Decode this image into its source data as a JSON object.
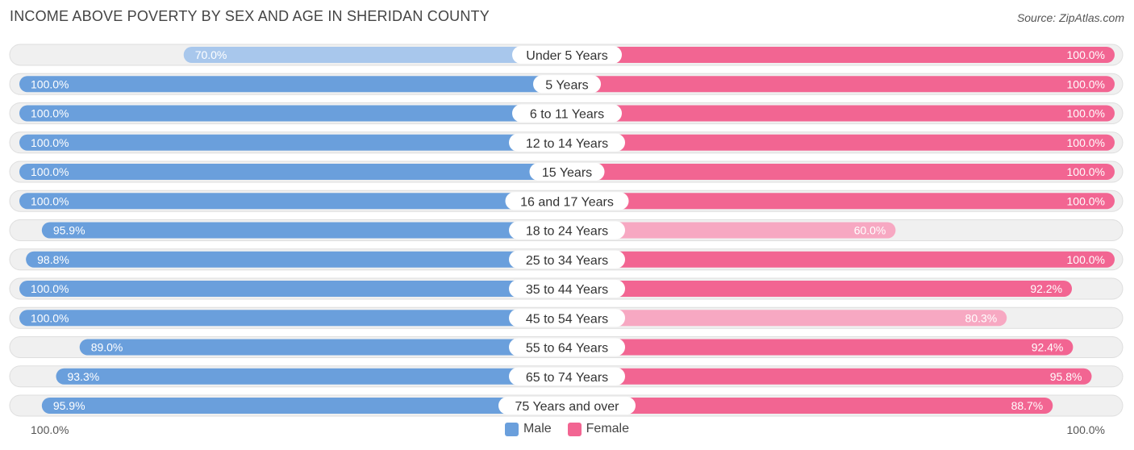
{
  "title": "INCOME ABOVE POVERTY BY SEX AND AGE IN SHERIDAN COUNTY",
  "source": "Source: ZipAtlas.com",
  "colors": {
    "male_full": "#6a9fdc",
    "male_light": "#a8c7ec",
    "female_full": "#f26592",
    "female_light": "#f7a8c2",
    "track": "#f0f0f0",
    "track_border": "#dedede"
  },
  "chart_data": {
    "type": "bar",
    "orientation": "horizontal-diverging",
    "title": "INCOME ABOVE POVERTY BY SEX AND AGE IN SHERIDAN COUNTY",
    "categories": [
      "Under 5 Years",
      "5 Years",
      "6 to 11 Years",
      "12 to 14 Years",
      "15 Years",
      "16 and 17 Years",
      "18 to 24 Years",
      "25 to 34 Years",
      "35 to 44 Years",
      "45 to 54 Years",
      "55 to 64 Years",
      "65 to 74 Years",
      "75 Years and over"
    ],
    "series": [
      {
        "name": "Male",
        "values": [
          70.0,
          100.0,
          100.0,
          100.0,
          100.0,
          100.0,
          95.9,
          98.8,
          100.0,
          100.0,
          89.0,
          93.3,
          95.9
        ],
        "labels": [
          "70.0%",
          "100.0%",
          "100.0%",
          "100.0%",
          "100.0%",
          "100.0%",
          "95.9%",
          "98.8%",
          "100.0%",
          "100.0%",
          "89.0%",
          "93.3%",
          "95.9%"
        ]
      },
      {
        "name": "Female",
        "values": [
          100.0,
          100.0,
          100.0,
          100.0,
          100.0,
          100.0,
          60.0,
          100.0,
          92.2,
          80.3,
          92.4,
          95.8,
          88.7
        ],
        "labels": [
          "100.0%",
          "100.0%",
          "100.0%",
          "100.0%",
          "100.0%",
          "100.0%",
          "60.0%",
          "100.0%",
          "92.2%",
          "80.3%",
          "92.4%",
          "95.8%",
          "88.7%"
        ]
      }
    ],
    "xlim": [
      0,
      100
    ],
    "axis_left_label": "100.0%",
    "axis_right_label": "100.0%",
    "legend": [
      "Male",
      "Female"
    ]
  }
}
